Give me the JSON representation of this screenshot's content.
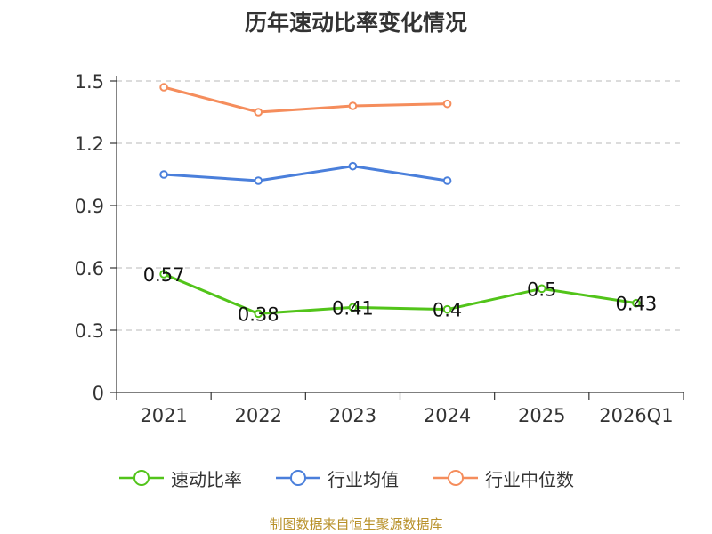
{
  "chart_data": {
    "type": "line",
    "title": "历年速动比率变化情况",
    "categories": [
      "2021",
      "2022",
      "2023",
      "2024",
      "2025",
      "2026Q1"
    ],
    "ylim": [
      0,
      1.5
    ],
    "yticks": [
      "0",
      "0.3",
      "0.6",
      "0.9",
      "1.2",
      "1.5"
    ],
    "ytick_values": [
      0,
      0.3,
      0.6,
      0.9,
      1.2,
      1.5
    ],
    "grid": true,
    "legend_position": "bottom",
    "series": [
      {
        "name": "速动比率",
        "color": "#52c41a",
        "values": [
          0.57,
          0.38,
          0.41,
          0.4,
          0.5,
          0.43
        ],
        "labels": [
          "0.57",
          "0.38",
          "0.41",
          "0.4",
          "0.5",
          "0.43"
        ]
      },
      {
        "name": "行业均值",
        "color": "#4a7fdb",
        "values": [
          1.05,
          1.02,
          1.09,
          1.02,
          null,
          null
        ]
      },
      {
        "name": "行业中位数",
        "color": "#f58d5c",
        "values": [
          1.47,
          1.35,
          1.38,
          1.39,
          null,
          null
        ]
      }
    ]
  },
  "footer": {
    "source": "制图数据来自恒生聚源数据库"
  }
}
